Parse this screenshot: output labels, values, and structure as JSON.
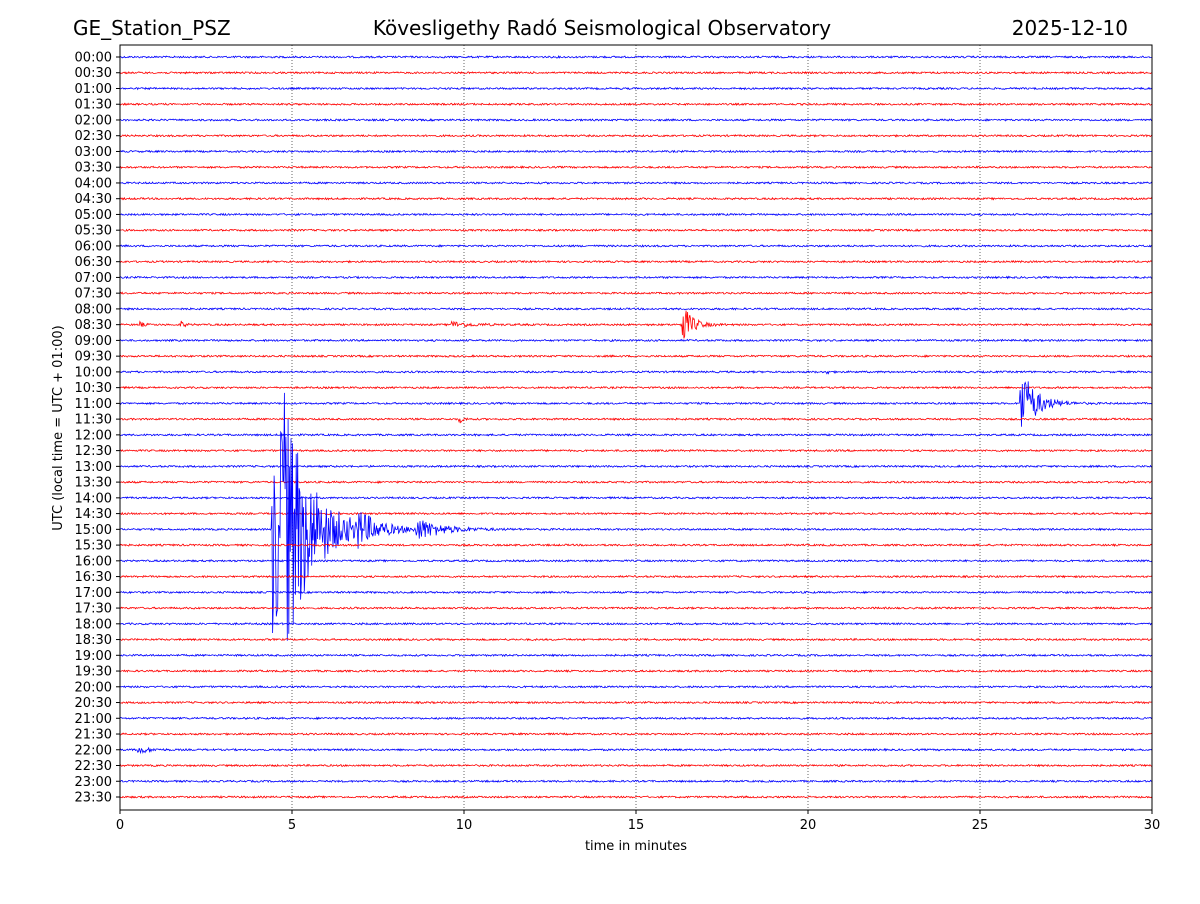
{
  "header": {
    "station": "GE_Station_PSZ",
    "observatory": "Kövesligethy Radó Seismological Observatory",
    "date": "2025-12-10"
  },
  "chart_data": {
    "type": "line",
    "title": "Kövesligethy Radó Seismological Observatory",
    "xlabel": "time in minutes",
    "ylabel": "UTC (local time = UTC + 01:00)",
    "xlim": [
      0,
      30
    ],
    "xticks": [
      "0",
      "5",
      "10",
      "15",
      "20",
      "25",
      "30"
    ],
    "grid": "vertical dotted lines at every 5 minutes",
    "colors": [
      "#0000ff",
      "#ff0000"
    ],
    "traces": [
      "00:00",
      "00:30",
      "01:00",
      "01:30",
      "02:00",
      "02:30",
      "03:00",
      "03:30",
      "04:00",
      "04:30",
      "05:00",
      "05:30",
      "06:00",
      "06:30",
      "07:00",
      "07:30",
      "08:00",
      "08:30",
      "09:00",
      "09:30",
      "10:00",
      "10:30",
      "11:00",
      "11:30",
      "12:00",
      "12:30",
      "13:00",
      "13:30",
      "14:00",
      "14:30",
      "15:00",
      "15:30",
      "16:00",
      "16:30",
      "17:00",
      "17:30",
      "18:00",
      "18:30",
      "19:00",
      "19:30",
      "20:00",
      "20:30",
      "21:00",
      "21:30",
      "22:00",
      "22:30",
      "23:00",
      "23:30"
    ],
    "events_amplitude_unit": "trace spacings",
    "events": [
      {
        "trace": "08:30",
        "start_min": 0.55,
        "amplitude": 0.25,
        "duration_min": 0.3
      },
      {
        "trace": "08:30",
        "start_min": 1.75,
        "amplitude": 0.3,
        "duration_min": 0.3
      },
      {
        "trace": "08:30",
        "start_min": 9.6,
        "amplitude": 0.2,
        "duration_min": 1.6
      },
      {
        "trace": "08:30",
        "start_min": 16.3,
        "amplitude": 1.6,
        "duration_min": 0.8
      },
      {
        "trace": "10:00",
        "start_min": 20.5,
        "amplitude": 0.45,
        "duration_min": 0.15
      },
      {
        "trace": "11:00",
        "start_min": 26.15,
        "amplitude": 2.6,
        "duration_min": 1.2
      },
      {
        "trace": "11:30",
        "start_min": 9.85,
        "amplitude": 0.3,
        "duration_min": 0.3
      },
      {
        "trace": "15:00",
        "start_min": 4.38,
        "amplitude": 7.5,
        "duration_min": 2.0
      },
      {
        "trace": "15:00",
        "start_min": 4.65,
        "amplitude": 5.5,
        "duration_min": 2.5
      },
      {
        "trace": "15:00",
        "start_min": 6.8,
        "amplitude": 1.0,
        "duration_min": 1.6
      },
      {
        "trace": "15:00",
        "start_min": 8.6,
        "amplitude": 0.7,
        "duration_min": 2.0
      },
      {
        "trace": "22:00",
        "start_min": 0.5,
        "amplitude": 0.3,
        "duration_min": 0.8
      }
    ]
  }
}
